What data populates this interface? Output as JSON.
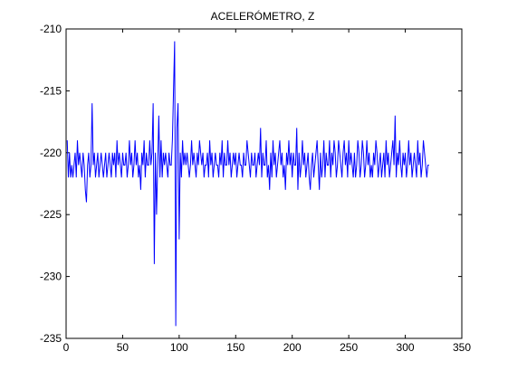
{
  "chart_data": {
    "type": "line",
    "title": "ACELERÓMETRO, Z",
    "xlabel": "",
    "ylabel": "",
    "xlim": [
      0,
      350
    ],
    "ylim": [
      -235,
      -210
    ],
    "xticks": [
      0,
      50,
      100,
      150,
      200,
      250,
      300,
      350
    ],
    "yticks": [
      -210,
      -215,
      -220,
      -225,
      -230,
      -235
    ],
    "xtick_labels": [
      "0",
      "50",
      "100",
      "150",
      "200",
      "250",
      "300",
      "350"
    ],
    "ytick_labels": [
      "-210",
      "-215",
      "-220",
      "-225",
      "-230",
      "-235"
    ],
    "grid": false,
    "line_color": "#0000ff",
    "series": [
      {
        "values": [
          -219,
          -222,
          -220,
          -222,
          -221,
          -222,
          -221,
          -220,
          -222,
          -219,
          -221,
          -220,
          -221,
          -222,
          -220,
          -221,
          -223,
          -224,
          -221,
          -220,
          -222,
          -221,
          -216,
          -221,
          -220,
          -222,
          -221,
          -220,
          -222,
          -221,
          -220,
          -221,
          -222,
          -221,
          -220,
          -222,
          -221,
          -220,
          -221,
          -222,
          -220,
          -221,
          -220,
          -222,
          -219,
          -221,
          -220,
          -221,
          -222,
          -220,
          -221,
          -221,
          -220,
          -222,
          -221,
          -219,
          -221,
          -220,
          -222,
          -221,
          -219,
          -221,
          -220,
          -222,
          -221,
          -223,
          -220,
          -221,
          -219,
          -222,
          -220,
          -221,
          -221,
          -219,
          -221,
          -220,
          -216,
          -229,
          -220,
          -225,
          -221,
          -217,
          -222,
          -219,
          -222,
          -220,
          -221,
          -220,
          -221,
          -222,
          -220,
          -221,
          -221,
          -219,
          -215,
          -211,
          -234,
          -218,
          -216,
          -227,
          -220,
          -222,
          -219,
          -221,
          -220,
          -221,
          -220,
          -221,
          -222,
          -221,
          -219,
          -221,
          -220,
          -221,
          -222,
          -220,
          -221,
          -219,
          -220,
          -221,
          -220,
          -222,
          -221,
          -221,
          -220,
          -222,
          -219,
          -221,
          -220,
          -222,
          -221,
          -220,
          -221,
          -221,
          -222,
          -220,
          -221,
          -219,
          -222,
          -220,
          -221,
          -221,
          -219,
          -221,
          -220,
          -222,
          -221,
          -220,
          -221,
          -220,
          -222,
          -221,
          -220,
          -221,
          -221,
          -222,
          -220,
          -221,
          -221,
          -219,
          -220,
          -221,
          -222,
          -220,
          -221,
          -221,
          -220,
          -222,
          -221,
          -220,
          -221,
          -218,
          -222,
          -220,
          -221,
          -221,
          -219,
          -222,
          -221,
          -223,
          -220,
          -222,
          -219,
          -221,
          -220,
          -222,
          -221,
          -220,
          -219,
          -221,
          -220,
          -222,
          -221,
          -223,
          -220,
          -221,
          -219,
          -221,
          -220,
          -222,
          -220,
          -221,
          -221,
          -218,
          -223,
          -220,
          -222,
          -221,
          -219,
          -221,
          -220,
          -222,
          -221,
          -220,
          -222,
          -223,
          -221,
          -220,
          -222,
          -221,
          -220,
          -219,
          -221,
          -223,
          -220,
          -222,
          -221,
          -219,
          -222,
          -220,
          -221,
          -221,
          -219,
          -222,
          -220,
          -221,
          -219,
          -220,
          -222,
          -221,
          -219,
          -220,
          -221,
          -222,
          -220,
          -219,
          -221,
          -220,
          -222,
          -219,
          -221,
          -220,
          -221,
          -222,
          -220,
          -222,
          -221,
          -219,
          -220,
          -222,
          -221,
          -219,
          -220,
          -222,
          -221,
          -219,
          -221,
          -220,
          -222,
          -221,
          -222,
          -220,
          -221,
          -219,
          -220,
          -222,
          -221,
          -220,
          -222,
          -221,
          -220,
          -222,
          -219,
          -221,
          -220,
          -222,
          -221,
          -220,
          -219,
          -221,
          -217,
          -222,
          -220,
          -221,
          -219,
          -221,
          -222,
          -220,
          -221,
          -220,
          -222,
          -221,
          -219,
          -221,
          -220,
          -222,
          -221,
          -220,
          -221,
          -222,
          -219,
          -221,
          -220,
          -222,
          -221,
          -219,
          -220,
          -221,
          -222,
          -221,
          -221
        ]
      }
    ]
  }
}
